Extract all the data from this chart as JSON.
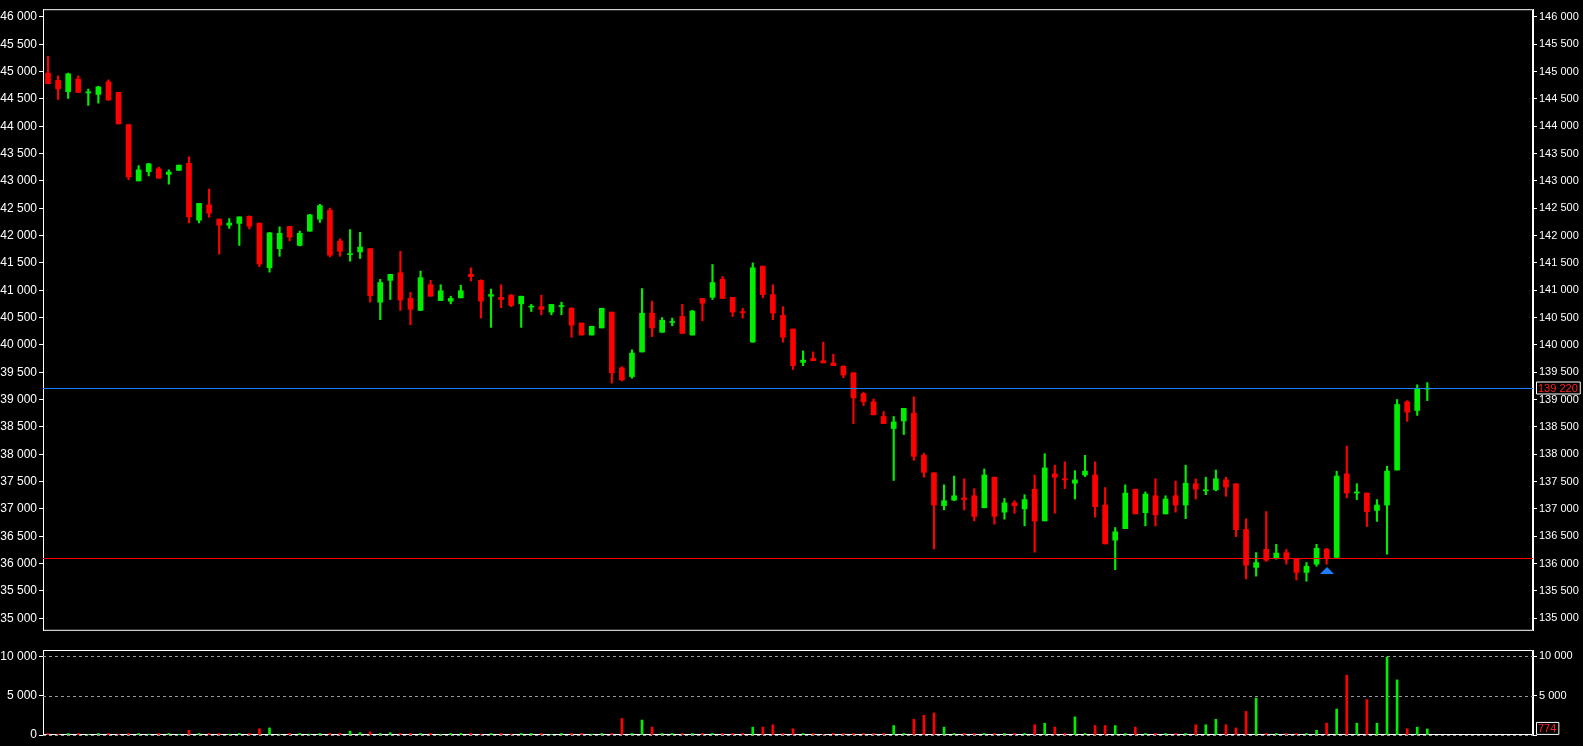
{
  "chart_data": [
    {
      "type": "candlestick",
      "categories": [
        null,
        null,
        null,
        null,
        null,
        null,
        null,
        null,
        null,
        null,
        null,
        null,
        null,
        null,
        null,
        null,
        null,
        null,
        null,
        null,
        null,
        null,
        null,
        null,
        null,
        null,
        null,
        null,
        null,
        null,
        null,
        null,
        null,
        null,
        null,
        null,
        null,
        null,
        null,
        null,
        null,
        null,
        null,
        null,
        null,
        null,
        null,
        null,
        null,
        null,
        null,
        null,
        null,
        null,
        null,
        null,
        null,
        null,
        null,
        null,
        null,
        null,
        null,
        null,
        null,
        null,
        null,
        null,
        null,
        null,
        null,
        null,
        null,
        null,
        null,
        null,
        null,
        null,
        null,
        null,
        null,
        null,
        null,
        null,
        null,
        null,
        null,
        null,
        null,
        null,
        null,
        null,
        null,
        null,
        null,
        null,
        null,
        null,
        null,
        null,
        null,
        null,
        null,
        null,
        null,
        null,
        null,
        null,
        null,
        null,
        null,
        null,
        null,
        null,
        null,
        null,
        null,
        null,
        null,
        null,
        null,
        null,
        null,
        null,
        null,
        null,
        null,
        null,
        null,
        null,
        null,
        null,
        null,
        null,
        null,
        null,
        null,
        null,
        null,
        null,
        null,
        null,
        null,
        null,
        null,
        null,
        null,
        null
      ],
      "ohlc": [
        [
          44970,
          45280,
          44780,
          44780
        ],
        [
          44840,
          44920,
          44490,
          44680
        ],
        [
          44630,
          44970,
          44510,
          44960
        ],
        [
          44860,
          44920,
          44620,
          44620
        ],
        [
          44610,
          44680,
          44380,
          44620
        ],
        [
          44580,
          44730,
          44420,
          44720
        ],
        [
          44810,
          44850,
          44470,
          44480
        ],
        [
          44620,
          44620,
          44040,
          44040
        ],
        [
          44030,
          44030,
          43020,
          43070
        ],
        [
          43000,
          43280,
          43000,
          43200
        ],
        [
          43170,
          43320,
          43090,
          43310
        ],
        [
          43220,
          43250,
          43050,
          43050
        ],
        [
          43120,
          43200,
          42940,
          43160
        ],
        [
          43190,
          43290,
          43190,
          43290
        ],
        [
          43320,
          43440,
          42230,
          42340
        ],
        [
          42280,
          42590,
          42230,
          42590
        ],
        [
          42560,
          42850,
          42330,
          42410
        ],
        [
          42300,
          42300,
          41660,
          42190
        ],
        [
          42190,
          42310,
          42130,
          42230
        ],
        [
          42220,
          42340,
          41820,
          42340
        ],
        [
          42350,
          42360,
          42120,
          42170
        ],
        [
          42230,
          42230,
          41430,
          41480
        ],
        [
          41410,
          42060,
          41330,
          42050
        ],
        [
          41760,
          42160,
          41620,
          42040
        ],
        [
          42170,
          42170,
          41900,
          41970
        ],
        [
          41820,
          42080,
          41810,
          42040
        ],
        [
          42080,
          42390,
          42080,
          42380
        ],
        [
          42300,
          42570,
          42240,
          42550
        ],
        [
          42460,
          42500,
          41610,
          41640
        ],
        [
          41900,
          41940,
          41620,
          41710
        ],
        [
          41650,
          42110,
          41530,
          41670
        ],
        [
          41700,
          42060,
          41580,
          41790
        ],
        [
          41760,
          41760,
          40780,
          40900
        ],
        [
          40780,
          41200,
          40460,
          41140
        ],
        [
          41180,
          41290,
          40830,
          41290
        ],
        [
          41320,
          41710,
          40630,
          40820
        ],
        [
          40850,
          40960,
          40370,
          40650
        ],
        [
          40630,
          41350,
          40630,
          41230
        ],
        [
          41100,
          41180,
          40890,
          40890
        ],
        [
          40810,
          41100,
          40810,
          40990
        ],
        [
          40800,
          40890,
          40750,
          40850
        ],
        [
          40860,
          41090,
          40860,
          40990
        ],
        [
          41290,
          41410,
          41170,
          41250
        ],
        [
          41180,
          41190,
          40490,
          40800
        ],
        [
          40890,
          41020,
          40320,
          40920
        ],
        [
          40870,
          41100,
          40680,
          40830
        ],
        [
          40910,
          40920,
          40700,
          40720
        ],
        [
          40750,
          40890,
          40320,
          40890
        ],
        [
          40690,
          40740,
          40610,
          40700
        ],
        [
          40700,
          40910,
          40550,
          40650
        ],
        [
          40600,
          40740,
          40550,
          40740
        ],
        [
          40700,
          40780,
          40550,
          40720
        ],
        [
          40670,
          40680,
          40140,
          40360
        ],
        [
          40400,
          40400,
          40180,
          40180
        ],
        [
          40180,
          40340,
          40180,
          40340
        ],
        [
          40310,
          40670,
          40310,
          40670
        ],
        [
          40600,
          40600,
          39300,
          39490
        ],
        [
          39580,
          39600,
          39340,
          39360
        ],
        [
          39420,
          39910,
          39390,
          39850
        ],
        [
          39870,
          41030,
          39870,
          40580
        ],
        [
          40580,
          40800,
          40150,
          40310
        ],
        [
          40230,
          40500,
          40230,
          40450
        ],
        [
          40410,
          40490,
          40350,
          40420
        ],
        [
          40520,
          40740,
          40210,
          40210
        ],
        [
          40180,
          40630,
          40180,
          40620
        ],
        [
          40850,
          40850,
          40440,
          40760
        ],
        [
          40870,
          41470,
          40830,
          41140
        ],
        [
          41200,
          41250,
          40850,
          40850
        ],
        [
          40870,
          40870,
          40520,
          40600
        ],
        [
          40600,
          40670,
          40490,
          40590
        ],
        [
          40050,
          41500,
          40050,
          41410
        ],
        [
          41440,
          41440,
          40860,
          40920
        ],
        [
          40920,
          41100,
          40460,
          40580
        ],
        [
          40540,
          40700,
          40050,
          40140
        ],
        [
          40290,
          40290,
          39550,
          39620
        ],
        [
          39680,
          39890,
          39620,
          39720
        ],
        [
          39750,
          39870,
          39710,
          39710
        ],
        [
          39710,
          40050,
          39670,
          39670
        ],
        [
          39670,
          39830,
          39620,
          39620
        ],
        [
          39610,
          39620,
          39400,
          39450
        ],
        [
          39490,
          39490,
          38560,
          39030
        ],
        [
          39110,
          39130,
          38890,
          38960
        ],
        [
          38960,
          39010,
          38720,
          38720
        ],
        [
          38690,
          38780,
          38560,
          38560
        ],
        [
          38470,
          38690,
          37520,
          38590
        ],
        [
          38610,
          38840,
          38360,
          38840
        ],
        [
          38750,
          39050,
          37890,
          37960
        ],
        [
          37980,
          38020,
          37580,
          37670
        ],
        [
          37660,
          37660,
          36270,
          37070
        ],
        [
          37060,
          37440,
          36980,
          37150
        ],
        [
          37160,
          37600,
          37150,
          37240
        ],
        [
          37200,
          37550,
          36980,
          37170
        ],
        [
          37240,
          37370,
          36780,
          36860
        ],
        [
          37020,
          37730,
          37020,
          37620
        ],
        [
          37580,
          37580,
          36720,
          36860
        ],
        [
          36940,
          37190,
          36810,
          37110
        ],
        [
          37110,
          37150,
          36920,
          37060
        ],
        [
          37000,
          37260,
          36690,
          37170
        ],
        [
          37360,
          37620,
          36210,
          36780
        ],
        [
          36780,
          38010,
          36780,
          37750
        ],
        [
          37640,
          37800,
          36920,
          37580
        ],
        [
          37550,
          37860,
          37370,
          37530
        ],
        [
          37470,
          37700,
          37180,
          37530
        ],
        [
          37620,
          37980,
          37590,
          37690
        ],
        [
          37620,
          37860,
          36850,
          37040
        ],
        [
          37070,
          37390,
          36360,
          36360
        ],
        [
          36430,
          36660,
          35890,
          36580
        ],
        [
          36640,
          37440,
          36640,
          37290
        ],
        [
          37360,
          37360,
          36910,
          36910
        ],
        [
          36930,
          37310,
          36690,
          37270
        ],
        [
          37240,
          37550,
          36690,
          36890
        ],
        [
          36910,
          37240,
          36910,
          37180
        ],
        [
          37240,
          37510,
          36940,
          37070
        ],
        [
          37070,
          37800,
          36820,
          37470
        ],
        [
          37460,
          37550,
          37180,
          37360
        ],
        [
          37330,
          37580,
          37260,
          37350
        ],
        [
          37350,
          37710,
          37330,
          37550
        ],
        [
          37530,
          37580,
          37230,
          37400
        ],
        [
          37460,
          37460,
          36490,
          36620
        ],
        [
          36620,
          36820,
          35720,
          35970
        ],
        [
          35930,
          36200,
          35770,
          36020
        ],
        [
          36260,
          36950,
          36040,
          36060
        ],
        [
          36090,
          36350,
          36080,
          36190
        ],
        [
          36200,
          36260,
          35990,
          36080
        ],
        [
          36080,
          36080,
          35700,
          35840
        ],
        [
          35840,
          36020,
          35680,
          35950
        ],
        [
          35990,
          36350,
          35950,
          36280
        ],
        [
          36260,
          36280,
          35990,
          36100
        ],
        [
          36110,
          37690,
          36090,
          37600
        ],
        [
          37640,
          38150,
          37200,
          37290
        ],
        [
          37290,
          37460,
          37170,
          37310
        ],
        [
          37290,
          37290,
          36680,
          36950
        ],
        [
          36970,
          37170,
          36770,
          37070
        ],
        [
          37070,
          37780,
          36170,
          37690
        ],
        [
          37710,
          39000,
          37710,
          38910
        ],
        [
          38960,
          38980,
          38600,
          38770
        ],
        [
          38800,
          39270,
          38710,
          39190
        ],
        [
          39190,
          39310,
          38980,
          39200
        ],
        null,
        null,
        null,
        null,
        null,
        null,
        null,
        null,
        null,
        null
      ],
      "colors": [
        "#ff0000",
        "#ff0000",
        "#00ee00",
        "#ff0000",
        "#00ee00",
        "#00ee00",
        "#ff0000",
        "#ff0000",
        "#ff0000",
        "#00ee00",
        "#00ee00",
        "#ff0000",
        "#00ee00",
        "#00ee00",
        "#ff0000",
        "#00ee00",
        "#ff0000",
        "#ff0000",
        "#00ee00",
        "#00ee00",
        "#ff0000",
        "#ff0000",
        "#00ee00",
        "#00ee00",
        "#ff0000",
        "#00ee00",
        "#00ee00",
        "#00ee00",
        "#ff0000",
        "#ff0000",
        "#00ee00",
        "#00ee00",
        "#ff0000",
        "#00ee00",
        "#00ee00",
        "#ff0000",
        "#ff0000",
        "#00ee00",
        "#ff0000",
        "#00ee00",
        "#00ee00",
        "#00ee00",
        "#ff0000",
        "#ff0000",
        "#00ee00",
        "#ff0000",
        "#ff0000",
        "#00ee00",
        "#00ee00",
        "#ff0000",
        "#00ee00",
        "#00ee00",
        "#ff0000",
        "#ff0000",
        "#00ee00",
        "#00ee00",
        "#ff0000",
        "#ff0000",
        "#00ee00",
        "#00ee00",
        "#ff0000",
        "#00ee00",
        "#00ee00",
        "#ff0000",
        "#00ee00",
        "#ff0000",
        "#00ee00",
        "#ff0000",
        "#ff0000",
        "#ff0000",
        "#00ee00",
        "#ff0000",
        "#ff0000",
        "#ff0000",
        "#ff0000",
        "#00ee00",
        "#ff0000",
        "#ff0000",
        "#ff0000",
        "#ff0000",
        "#ff0000",
        "#ff0000",
        "#ff0000",
        "#ff0000",
        "#00ee00",
        "#00ee00",
        "#ff0000",
        "#ff0000",
        "#ff0000",
        "#00ee00",
        "#00ee00",
        "#ff0000",
        "#ff0000",
        "#00ee00",
        "#ff0000",
        "#00ee00",
        "#ff0000",
        "#00ee00",
        "#ff0000",
        "#00ee00",
        "#ff0000",
        "#ff0000",
        "#00ee00",
        "#00ee00",
        "#ff0000",
        "#ff0000",
        "#00ee00",
        "#00ee00",
        "#ff0000",
        "#00ee00",
        "#ff0000",
        "#00ee00",
        "#ff0000",
        "#00ee00",
        "#ff0000",
        "#00ee00",
        "#00ee00",
        "#ff0000",
        "#ff0000",
        "#ff0000",
        "#00ee00",
        "#ff0000",
        "#00ee00",
        "#ff0000",
        "#ff0000",
        "#00ee00",
        "#00ee00",
        "#ff0000",
        "#00ee00",
        "#ff0000",
        "#00ee00",
        "#ff0000",
        "#00ee00",
        "#00ee00",
        "#00ee00",
        "#ff0000",
        "#00ee00",
        "#00ee00",
        null,
        null,
        null,
        null,
        null,
        null,
        null,
        null,
        null,
        null
      ],
      "ylim": [
        34770,
        46140
      ],
      "yticks": [
        {
          "value": 35000,
          "label": "35 000"
        },
        {
          "value": 35500,
          "label": "35 500"
        },
        {
          "value": 36000,
          "label": "36 000"
        },
        {
          "value": 36500,
          "label": "36 500"
        },
        {
          "value": 37000,
          "label": "37 000"
        },
        {
          "value": 37500,
          "label": "37 500"
        },
        {
          "value": 38000,
          "label": "38 000"
        },
        {
          "value": 38500,
          "label": "38 500"
        },
        {
          "value": 39000,
          "label": "39 000"
        },
        {
          "value": 39500,
          "label": "39 500"
        },
        {
          "value": 40000,
          "label": "40 000"
        },
        {
          "value": 40500,
          "label": "40 500"
        },
        {
          "value": 41000,
          "label": "41 000"
        },
        {
          "value": 41500,
          "label": "41 500"
        },
        {
          "value": 42000,
          "label": "42 000"
        },
        {
          "value": 42500,
          "label": "42 500"
        },
        {
          "value": 43000,
          "label": "43 000"
        },
        {
          "value": 43500,
          "label": "43 500"
        },
        {
          "value": 44000,
          "label": "44 000"
        },
        {
          "value": 44500,
          "label": "44 500"
        },
        {
          "value": 45000,
          "label": "45 000"
        },
        {
          "value": 45500,
          "label": "45 500"
        },
        {
          "value": 46000,
          "label": "46 000"
        }
      ],
      "y2lim": [
        134770,
        146140
      ],
      "y2ticks": [
        {
          "value": 135000,
          "label": "135 000"
        },
        {
          "value": 135500,
          "label": "135 500"
        },
        {
          "value": 136000,
          "label": "136 000"
        },
        {
          "value": 136500,
          "label": "136 500"
        },
        {
          "value": 137000,
          "label": "137 000"
        },
        {
          "value": 137500,
          "label": "137 500"
        },
        {
          "value": 138000,
          "label": "138 000"
        },
        {
          "value": 138500,
          "label": "138 500"
        },
        {
          "value": 139000,
          "label": "139 000"
        },
        {
          "value": 139500,
          "label": "139 500"
        },
        {
          "value": 140000,
          "label": "140 000"
        },
        {
          "value": 140500,
          "label": "140 500"
        },
        {
          "value": 141000,
          "label": "141 000"
        },
        {
          "value": 141500,
          "label": "141 500"
        },
        {
          "value": 142000,
          "label": "142 000"
        },
        {
          "value": 142500,
          "label": "142 500"
        },
        {
          "value": 143000,
          "label": "143 000"
        },
        {
          "value": 143500,
          "label": "143 500"
        },
        {
          "value": 144000,
          "label": "144 000"
        },
        {
          "value": 144500,
          "label": "144 500"
        },
        {
          "value": 145000,
          "label": "145 000"
        },
        {
          "value": 145500,
          "label": "145 500"
        },
        {
          "value": 146000,
          "label": "146 000"
        }
      ],
      "ref_lines": [
        {
          "axis": "y2",
          "value": 139220,
          "label": "139 220",
          "color": "#1a7fff"
        },
        {
          "axis": "y",
          "value": 36110,
          "color": "#ff0000"
        }
      ]
    },
    {
      "type": "bar",
      "categories": [
        null,
        null,
        null,
        null,
        null,
        null,
        null,
        null,
        null,
        null,
        null,
        null,
        null,
        null,
        null,
        null,
        null,
        null,
        null,
        null,
        null,
        null,
        null,
        null,
        null,
        null,
        null,
        null,
        null,
        null,
        null,
        null,
        null,
        null,
        null,
        null,
        null,
        null,
        null,
        null,
        null,
        null,
        null,
        null,
        null,
        null,
        null,
        null,
        null,
        null,
        null,
        null,
        null,
        null,
        null,
        null,
        null,
        null,
        null,
        null,
        null,
        null,
        null,
        null,
        null,
        null,
        null,
        null,
        null,
        null,
        null,
        null,
        null,
        null,
        null,
        null,
        null,
        null,
        null,
        null,
        null,
        null,
        null,
        null,
        null,
        null,
        null,
        null,
        null,
        null,
        null,
        null,
        null,
        null,
        null,
        null,
        null,
        null,
        null,
        null,
        null,
        null,
        null,
        null,
        null,
        null,
        null,
        null,
        null,
        null,
        null,
        null,
        null,
        null,
        null,
        null,
        null,
        null,
        null,
        null,
        null,
        null,
        null,
        null,
        null,
        null,
        null,
        null,
        null,
        null,
        null,
        null,
        null,
        null,
        null,
        null,
        null,
        null,
        null,
        null,
        null,
        null,
        null,
        null,
        null,
        null,
        null,
        null
      ],
      "values": [
        200,
        100,
        200,
        200,
        100,
        200,
        200,
        100,
        200,
        200,
        100,
        200,
        200,
        100,
        600,
        200,
        200,
        200,
        100,
        200,
        200,
        800,
        900,
        100,
        200,
        200,
        100,
        200,
        200,
        200,
        500,
        300,
        400,
        200,
        300,
        200,
        200,
        200,
        200,
        100,
        200,
        200,
        200,
        100,
        200,
        200,
        100,
        200,
        200,
        200,
        100,
        200,
        200,
        200,
        100,
        200,
        200,
        2100,
        200,
        1900,
        1000,
        200,
        200,
        200,
        200,
        200,
        200,
        200,
        200,
        200,
        1000,
        1000,
        1300,
        200,
        800,
        200,
        200,
        100,
        200,
        200,
        200,
        200,
        200,
        200,
        1200,
        200,
        2000,
        2500,
        2800,
        1000,
        200,
        200,
        200,
        200,
        200,
        200,
        200,
        200,
        1300,
        1500,
        1000,
        200,
        2300,
        200,
        1200,
        1200,
        1200,
        200,
        1000,
        200,
        200,
        200,
        200,
        200,
        1300,
        1300,
        2000,
        1300,
        900,
        3000,
        4700,
        200,
        200,
        200,
        200,
        200,
        600,
        1500,
        3300,
        7600,
        1500,
        4500,
        1500,
        9900,
        7000,
        800,
        1000,
        774,
        null,
        null,
        null,
        null,
        null,
        null,
        null,
        null,
        null,
        null
      ],
      "colors": [
        "#ff0000",
        "#ff0000",
        "#00ee00",
        "#ff0000",
        "#00ee00",
        "#00ee00",
        "#ff0000",
        "#ff0000",
        "#ff0000",
        "#00ee00",
        "#00ee00",
        "#ff0000",
        "#00ee00",
        "#00ee00",
        "#ff0000",
        "#00ee00",
        "#ff0000",
        "#ff0000",
        "#00ee00",
        "#00ee00",
        "#ff0000",
        "#ff0000",
        "#00ee00",
        "#00ee00",
        "#ff0000",
        "#00ee00",
        "#00ee00",
        "#00ee00",
        "#ff0000",
        "#ff0000",
        "#00ee00",
        "#00ee00",
        "#ff0000",
        "#00ee00",
        "#00ee00",
        "#ff0000",
        "#ff0000",
        "#00ee00",
        "#ff0000",
        "#00ee00",
        "#00ee00",
        "#00ee00",
        "#ff0000",
        "#ff0000",
        "#00ee00",
        "#ff0000",
        "#ff0000",
        "#00ee00",
        "#00ee00",
        "#ff0000",
        "#00ee00",
        "#00ee00",
        "#ff0000",
        "#ff0000",
        "#00ee00",
        "#00ee00",
        "#ff0000",
        "#ff0000",
        "#00ee00",
        "#00ee00",
        "#ff0000",
        "#00ee00",
        "#00ee00",
        "#ff0000",
        "#00ee00",
        "#ff0000",
        "#00ee00",
        "#ff0000",
        "#ff0000",
        "#ff0000",
        "#00ee00",
        "#ff0000",
        "#ff0000",
        "#ff0000",
        "#ff0000",
        "#00ee00",
        "#ff0000",
        "#ff0000",
        "#ff0000",
        "#ff0000",
        "#ff0000",
        "#ff0000",
        "#ff0000",
        "#ff0000",
        "#00ee00",
        "#00ee00",
        "#ff0000",
        "#ff0000",
        "#ff0000",
        "#00ee00",
        "#00ee00",
        "#ff0000",
        "#ff0000",
        "#00ee00",
        "#ff0000",
        "#00ee00",
        "#ff0000",
        "#00ee00",
        "#ff0000",
        "#00ee00",
        "#ff0000",
        "#ff0000",
        "#00ee00",
        "#00ee00",
        "#ff0000",
        "#ff0000",
        "#00ee00",
        "#00ee00",
        "#ff0000",
        "#00ee00",
        "#ff0000",
        "#00ee00",
        "#ff0000",
        "#00ee00",
        "#ff0000",
        "#00ee00",
        "#00ee00",
        "#ff0000",
        "#ff0000",
        "#ff0000",
        "#00ee00",
        "#ff0000",
        "#00ee00",
        "#ff0000",
        "#ff0000",
        "#00ee00",
        "#00ee00",
        "#ff0000",
        "#00ee00",
        "#ff0000",
        "#00ee00",
        "#ff0000",
        "#00ee00",
        "#00ee00",
        "#00ee00",
        "#ff0000",
        "#00ee00",
        "#00ee00",
        null,
        null,
        null,
        null,
        null,
        null,
        null,
        null,
        null,
        null
      ],
      "ylim": [
        0,
        10800
      ],
      "yticks": [
        0,
        {
          "value": 5000,
          "label": "5 000"
        },
        {
          "value": 10000,
          "label": "10 000"
        }
      ],
      "y2lim": [
        0,
        10800
      ],
      "y2ticks": [
        {
          "value": 0,
          "label": null
        },
        {
          "value": 5000,
          "label": "5 000"
        },
        {
          "value": 10000,
          "label": "10 000"
        }
      ],
      "grid": "y",
      "annotations": [
        {
          "text": "774",
          "y": 774
        }
      ]
    }
  ]
}
